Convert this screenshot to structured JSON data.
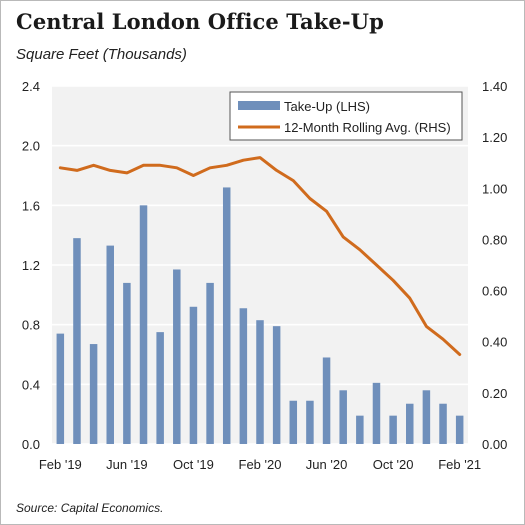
{
  "title": "Central London Office Take-Up",
  "subtitle": "Square Feet (Thousands)",
  "source": "Source: Capital Economics.",
  "chart_data": {
    "type": "bar",
    "categories": [
      "Feb '19",
      "Mar '19",
      "Apr '19",
      "May '19",
      "Jun '19",
      "Jul '19",
      "Aug '19",
      "Sep '19",
      "Oct '19",
      "Nov '19",
      "Dec '19",
      "Jan '20",
      "Feb '20",
      "Mar '20",
      "Apr '20",
      "May '20",
      "Jun '20",
      "Jul '20",
      "Aug '20",
      "Sep '20",
      "Oct '20",
      "Nov '20",
      "Dec '20",
      "Jan '21",
      "Feb '21"
    ],
    "x_tick_labels": [
      "Feb '19",
      "Jun '19",
      "Oct '19",
      "Feb '20",
      "Jun '20",
      "Oct '20",
      "Feb '21"
    ],
    "x_tick_indices": [
      0,
      4,
      8,
      12,
      16,
      20,
      24
    ],
    "series": [
      {
        "name": "Take-Up (LHS)",
        "type": "bar",
        "axis": "left",
        "color": "#6f8fbb",
        "values": [
          0.74,
          1.38,
          0.67,
          1.33,
          1.08,
          1.6,
          0.75,
          1.17,
          0.92,
          1.08,
          1.72,
          0.91,
          0.83,
          0.79,
          0.29,
          0.29,
          0.58,
          0.36,
          0.19,
          0.41,
          0.19,
          0.27,
          0.36,
          0.27,
          0.19
        ]
      },
      {
        "name": "12-Month Rolling Avg. (RHS)",
        "type": "line",
        "axis": "right",
        "color": "#d06b1d",
        "values": [
          1.08,
          1.07,
          1.09,
          1.07,
          1.06,
          1.09,
          1.09,
          1.08,
          1.05,
          1.08,
          1.09,
          1.11,
          1.12,
          1.07,
          1.03,
          0.96,
          0.91,
          0.81,
          0.76,
          0.7,
          0.64,
          0.57,
          0.46,
          0.41,
          0.35
        ]
      }
    ],
    "left_axis": {
      "ylim": [
        0,
        2.4
      ],
      "ticks": [
        "0.0",
        "0.4",
        "0.8",
        "1.2",
        "1.6",
        "2.0",
        "2.4"
      ]
    },
    "right_axis": {
      "ylim": [
        0,
        1.4
      ],
      "ticks": [
        "0.00",
        "0.20",
        "0.40",
        "0.60",
        "0.80",
        "1.00",
        "1.20",
        "1.40"
      ]
    },
    "grid": "horizontal",
    "legend_position": "top-right",
    "plot_background": "#f2f2f2"
  }
}
